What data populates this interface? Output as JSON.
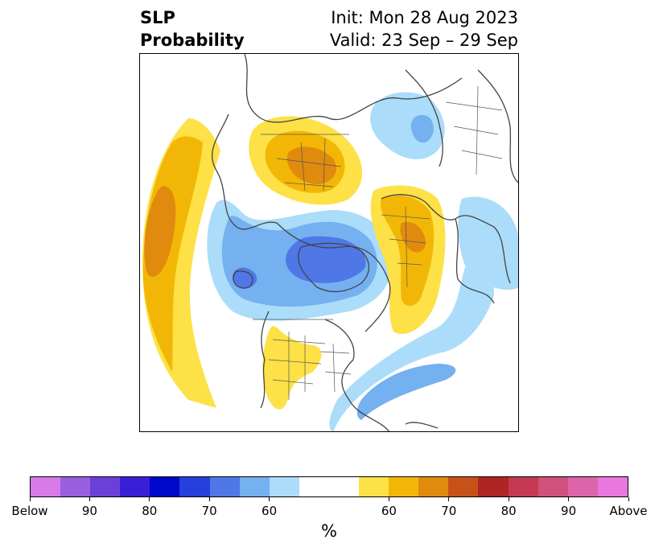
{
  "header": {
    "title_line1": "SLP",
    "title_line2": "Probability",
    "init_label": "Init: Mon 28 Aug 2023",
    "valid_label": "Valid: 23 Sep – 29 Sep"
  },
  "colorbar": {
    "unit": "%",
    "tick_labels": [
      "Below",
      "90",
      "80",
      "70",
      "60",
      "60",
      "70",
      "80",
      "90",
      "Above"
    ],
    "colors": [
      "#d67be8",
      "#9a5ee0",
      "#6d3fda",
      "#3b1fd6",
      "#0008cc",
      "#2540dc",
      "#4f78e6",
      "#75b0f0",
      "#abdcfa",
      "#ffffff",
      "#ffffff",
      "#fde146",
      "#f2b706",
      "#e08a0e",
      "#c65218",
      "#b02424",
      "#c43a52",
      "#d0527c",
      "#dc64a8",
      "#e878de"
    ]
  },
  "map_colors": {
    "below_60": "#abdcfa",
    "below_70": "#75b0f0",
    "below_80": "#4f78e6",
    "above_60": "#fde146",
    "above_70": "#f2b706",
    "above_80": "#e08a0e",
    "coast": "#444444",
    "border": "#555555"
  }
}
